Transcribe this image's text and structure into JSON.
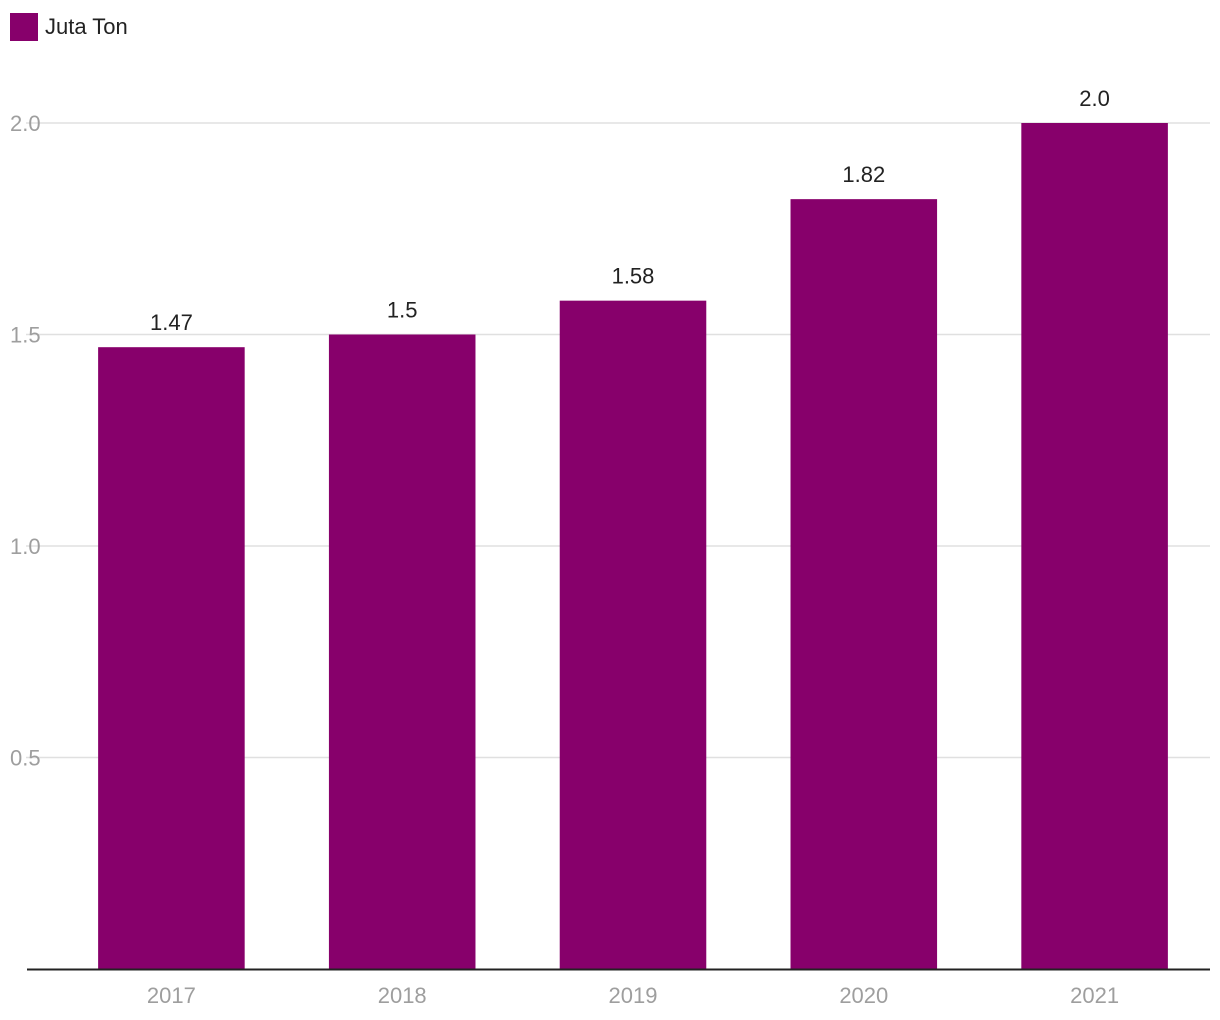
{
  "legend": {
    "label": "Juta Ton"
  },
  "colors": {
    "bar": "#87006b",
    "grid": "#e0e0e0",
    "axis": "#222222"
  },
  "chart_data": {
    "type": "bar",
    "categories": [
      "2017",
      "2018",
      "2019",
      "2020",
      "2021"
    ],
    "series": [
      {
        "name": "Juta Ton",
        "values": [
          1.47,
          1.5,
          1.58,
          1.82,
          2.0
        ],
        "labels": [
          "1.47",
          "1.5",
          "1.58",
          "1.82",
          "2.0"
        ]
      }
    ],
    "ylim": [
      0,
      2.0
    ],
    "yticks": [
      {
        "value": 0.5,
        "label": "0.5"
      },
      {
        "value": 1.0,
        "label": "1.0"
      },
      {
        "value": 1.5,
        "label": "1.5"
      },
      {
        "value": 2.0,
        "label": "2.0"
      }
    ],
    "grid": true,
    "legend_position": "top-left",
    "title": "",
    "xlabel": "",
    "ylabel": ""
  }
}
